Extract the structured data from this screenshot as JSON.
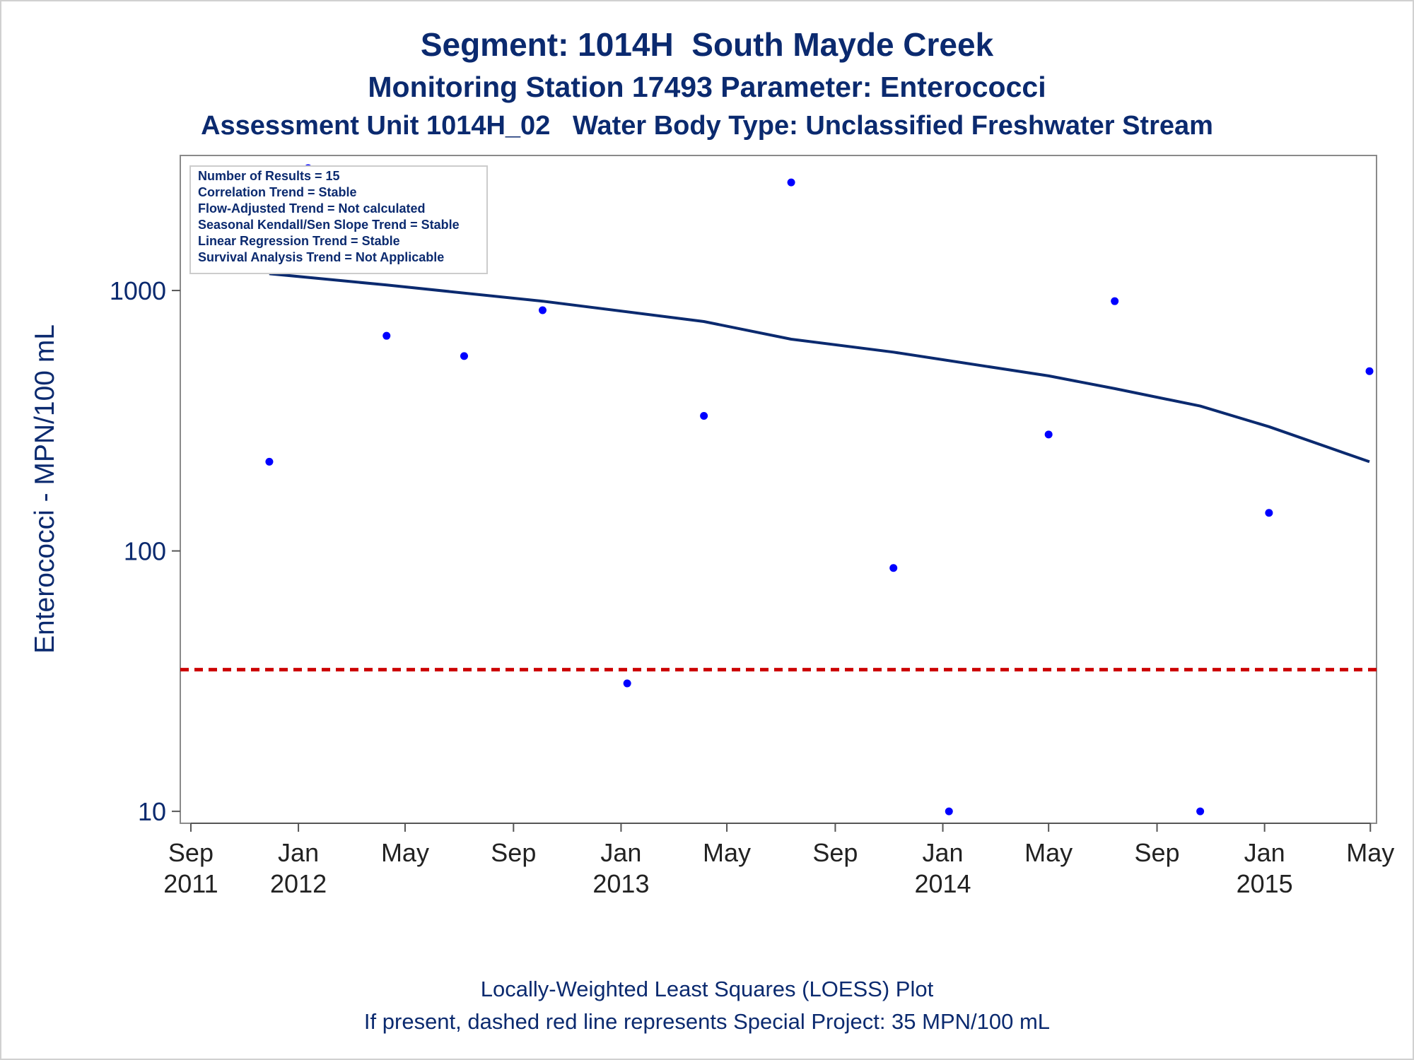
{
  "titles": {
    "line1": "Segment: 1014H  South Mayde Creek",
    "line2": "Monitoring Station 17493 Parameter: Enterococci",
    "line3": "Assessment Unit 1014H_02   Water Body Type: Unclassified Freshwater Stream"
  },
  "footnotes": {
    "line1": "Locally-Weighted Least Squares (LOESS) Plot",
    "line2": "If present, dashed red line represents Special Project: 35 MPN/100 mL"
  },
  "chart_data": {
    "type": "scatter",
    "ylabel": "Enterococci - MPN/100 mL",
    "y_scale": "log",
    "ylim": [
      9,
      3300
    ],
    "yticks": [
      10,
      100,
      1000
    ],
    "xlim": [
      "2011-08-20",
      "2015-05-08"
    ],
    "xticks": [
      {
        "date": "2011-09-01",
        "line1": "Sep",
        "line2": "2011"
      },
      {
        "date": "2012-01-01",
        "line1": "Jan",
        "line2": "2012"
      },
      {
        "date": "2012-05-01",
        "line1": "May",
        "line2": ""
      },
      {
        "date": "2012-09-01",
        "line1": "Sep",
        "line2": ""
      },
      {
        "date": "2013-01-01",
        "line1": "Jan",
        "line2": "2013"
      },
      {
        "date": "2013-05-01",
        "line1": "May",
        "line2": ""
      },
      {
        "date": "2013-09-01",
        "line1": "Sep",
        "line2": ""
      },
      {
        "date": "2014-01-01",
        "line1": "Jan",
        "line2": "2014"
      },
      {
        "date": "2014-05-01",
        "line1": "May",
        "line2": ""
      },
      {
        "date": "2014-09-01",
        "line1": "Sep",
        "line2": ""
      },
      {
        "date": "2015-01-01",
        "line1": "Jan",
        "line2": "2015"
      },
      {
        "date": "2015-05-01",
        "line1": "May",
        "line2": ""
      }
    ],
    "points": [
      {
        "x": "2011-11-29",
        "y": 220
      },
      {
        "x": "2012-01-12",
        "y": 2950
      },
      {
        "x": "2012-04-10",
        "y": 670
      },
      {
        "x": "2012-07-07",
        "y": 560
      },
      {
        "x": "2012-10-04",
        "y": 840
      },
      {
        "x": "2013-01-08",
        "y": 31
      },
      {
        "x": "2013-04-05",
        "y": 330
      },
      {
        "x": "2013-07-13",
        "y": 2600
      },
      {
        "x": "2013-11-06",
        "y": 86
      },
      {
        "x": "2014-01-08",
        "y": 10
      },
      {
        "x": "2014-05-01",
        "y": 280
      },
      {
        "x": "2014-07-15",
        "y": 910
      },
      {
        "x": "2014-10-20",
        "y": 10
      },
      {
        "x": "2015-01-06",
        "y": 140
      },
      {
        "x": "2015-04-30",
        "y": 490
      }
    ],
    "loess": [
      {
        "x": "2011-11-29",
        "y": 1160
      },
      {
        "x": "2012-04-10",
        "y": 1050
      },
      {
        "x": "2012-10-04",
        "y": 910
      },
      {
        "x": "2013-04-05",
        "y": 760
      },
      {
        "x": "2013-07-13",
        "y": 650
      },
      {
        "x": "2013-11-06",
        "y": 580
      },
      {
        "x": "2014-05-01",
        "y": 470
      },
      {
        "x": "2014-07-15",
        "y": 420
      },
      {
        "x": "2014-10-20",
        "y": 360
      },
      {
        "x": "2015-01-06",
        "y": 300
      },
      {
        "x": "2015-04-30",
        "y": 220
      }
    ],
    "reference_line": {
      "y": 35,
      "color": "#cc0000",
      "style": "dashed"
    },
    "point_color": "#0000ff",
    "line_color": "#0b2a6f",
    "legend_placement": "top-left",
    "legend": [
      "Number of Results = 15",
      "Correlation Trend = Stable",
      "Flow-Adjusted Trend = Not calculated",
      "Seasonal Kendall/Sen Slope Trend = Stable",
      "Linear Regression Trend = Stable",
      "Survival Analysis Trend = Not Applicable"
    ]
  }
}
